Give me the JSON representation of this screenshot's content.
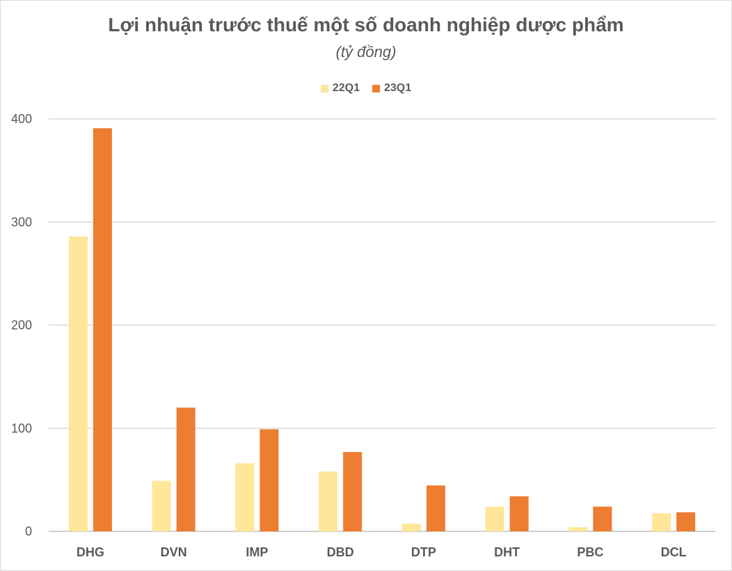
{
  "chart_data": {
    "type": "bar",
    "title": "Lợi nhuận trước thuế một số doanh nghiệp dược phẩm",
    "subtitle": "(tỷ đồng)",
    "categories": [
      "DHG",
      "DVN",
      "IMP",
      "DBD",
      "DTP",
      "DHT",
      "PBC",
      "DCL"
    ],
    "series": [
      {
        "name": "22Q1",
        "color": "#FFE699",
        "values": [
          286,
          49,
          66,
          58,
          7.5,
          24,
          4,
          17.5
        ]
      },
      {
        "name": "23Q1",
        "color": "#ED7D31",
        "values": [
          391,
          120,
          99,
          77,
          44.5,
          34,
          24,
          18.5
        ]
      }
    ],
    "ylim": [
      0,
      400
    ],
    "yticks": [
      0,
      100,
      200,
      300,
      400
    ],
    "grid": true,
    "legend_position": "top"
  }
}
